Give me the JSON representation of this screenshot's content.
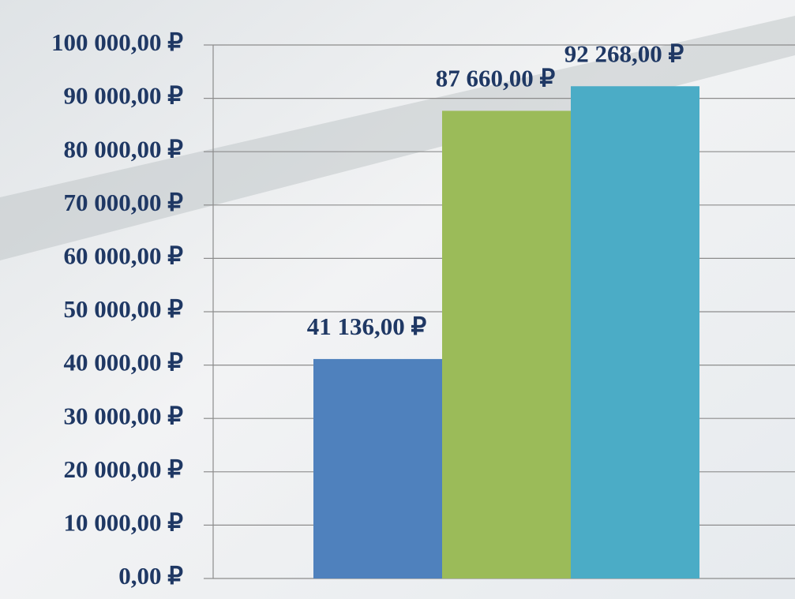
{
  "chart_data": {
    "type": "bar",
    "categories": [
      null
    ],
    "series": [
      {
        "color": "#4f81bd",
        "values": [
          41136
        ],
        "value_labels": [
          "41 136,00 ₽"
        ]
      },
      {
        "color": "#9bbb59",
        "values": [
          87660
        ],
        "value_labels": [
          "87 660,00 ₽"
        ]
      },
      {
        "color": "#4bacc6",
        "values": [
          92268
        ],
        "value_labels": [
          "92 268,00 ₽"
        ]
      }
    ],
    "ylim": [
      0,
      100000
    ],
    "yticks": [
      {
        "value": 0,
        "label": "0,00 ₽"
      },
      {
        "value": 10000,
        "label": "10 000,00 ₽"
      },
      {
        "value": 20000,
        "label": "20 000,00 ₽"
      },
      {
        "value": 30000,
        "label": "30 000,00 ₽"
      },
      {
        "value": 40000,
        "label": "40 000,00 ₽"
      },
      {
        "value": 50000,
        "label": "50 000,00 ₽"
      },
      {
        "value": 60000,
        "label": "60 000,00 ₽"
      },
      {
        "value": 70000,
        "label": "70 000,00 ₽"
      },
      {
        "value": 80000,
        "label": "80 000,00 ₽"
      },
      {
        "value": 90000,
        "label": "90 000,00 ₽"
      },
      {
        "value": 100000,
        "label": "100 000,00 ₽"
      }
    ],
    "grid": true
  }
}
